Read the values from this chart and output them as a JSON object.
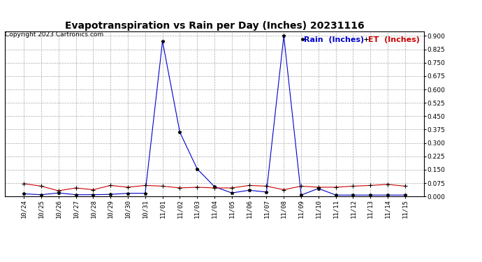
{
  "title": "Evapotranspiration vs Rain per Day (Inches) 20231116",
  "copyright": "Copyright 2023 Cartronics.com",
  "legend_rain": "Rain  (Inches)",
  "legend_et": "ET  (Inches)",
  "x_labels": [
    "10/24",
    "10/25",
    "10/26",
    "10/27",
    "10/28",
    "10/29",
    "10/30",
    "10/31",
    "11/01",
    "11/02",
    "11/03",
    "11/04",
    "11/05",
    "11/06",
    "11/07",
    "11/08",
    "11/09",
    "11/10",
    "11/11",
    "11/12",
    "11/13",
    "11/14",
    "11/15"
  ],
  "rain": [
    0.015,
    0.01,
    0.02,
    0.01,
    0.01,
    0.012,
    0.018,
    0.018,
    0.87,
    0.36,
    0.155,
    0.055,
    0.02,
    0.035,
    0.025,
    0.9,
    0.008,
    0.045,
    0.008,
    0.008,
    0.008,
    0.008,
    0.008
  ],
  "et": [
    0.072,
    0.058,
    0.032,
    0.048,
    0.038,
    0.062,
    0.052,
    0.062,
    0.058,
    0.048,
    0.052,
    0.048,
    0.048,
    0.062,
    0.058,
    0.038,
    0.058,
    0.052,
    0.052,
    0.058,
    0.062,
    0.068,
    0.058
  ],
  "rain_color": "#0000cc",
  "et_color": "#cc0000",
  "ylim": [
    0.0,
    0.925
  ],
  "yticks": [
    0.0,
    0.075,
    0.15,
    0.225,
    0.3,
    0.375,
    0.45,
    0.525,
    0.6,
    0.675,
    0.75,
    0.825,
    0.9
  ],
  "bg_color": "#ffffff",
  "grid_color": "#aaaaaa",
  "title_fontsize": 10,
  "copyright_fontsize": 6.5,
  "legend_fontsize": 8,
  "tick_fontsize": 6.5,
  "figwidth": 6.9,
  "figheight": 3.75,
  "dpi": 100
}
